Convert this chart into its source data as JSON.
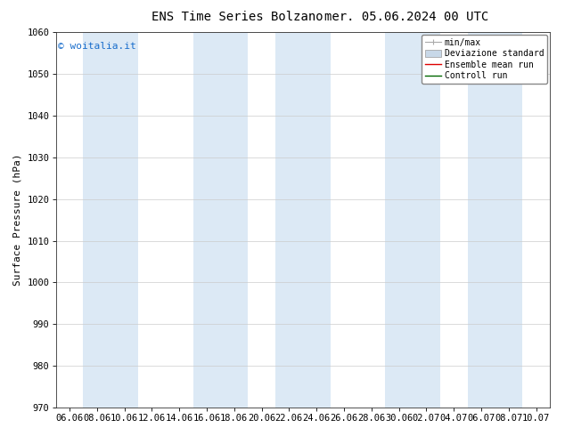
{
  "title_left": "ENS Time Series Bolzano",
  "title_right": "mer. 05.06.2024 00 UTC",
  "ylabel": "Surface Pressure (hPa)",
  "ylim": [
    970,
    1060
  ],
  "yticks": [
    970,
    980,
    990,
    1000,
    1010,
    1020,
    1030,
    1040,
    1050,
    1060
  ],
  "xtick_labels": [
    "06.06",
    "08.06",
    "10.06",
    "12.06",
    "14.06",
    "16.06",
    "18.06",
    "20.06",
    "22.06",
    "24.06",
    "26.06",
    "28.06",
    "30.06",
    "02.07",
    "04.07",
    "06.07",
    "08.07",
    "10.07"
  ],
  "num_xticks": 18,
  "band_color": "#dce9f5",
  "band_alpha": 1.0,
  "background_color": "#ffffff",
  "watermark": "© woitalia.it",
  "watermark_color": "#1a6ecc",
  "legend_minmax_color": "#aaaaaa",
  "legend_dev_color": "#c8d8e8",
  "legend_ens_color": "#dd0000",
  "legend_ctrl_color": "#006600",
  "title_fontsize": 10,
  "tick_fontsize": 7.5,
  "ylabel_fontsize": 8,
  "watermark_fontsize": 8
}
